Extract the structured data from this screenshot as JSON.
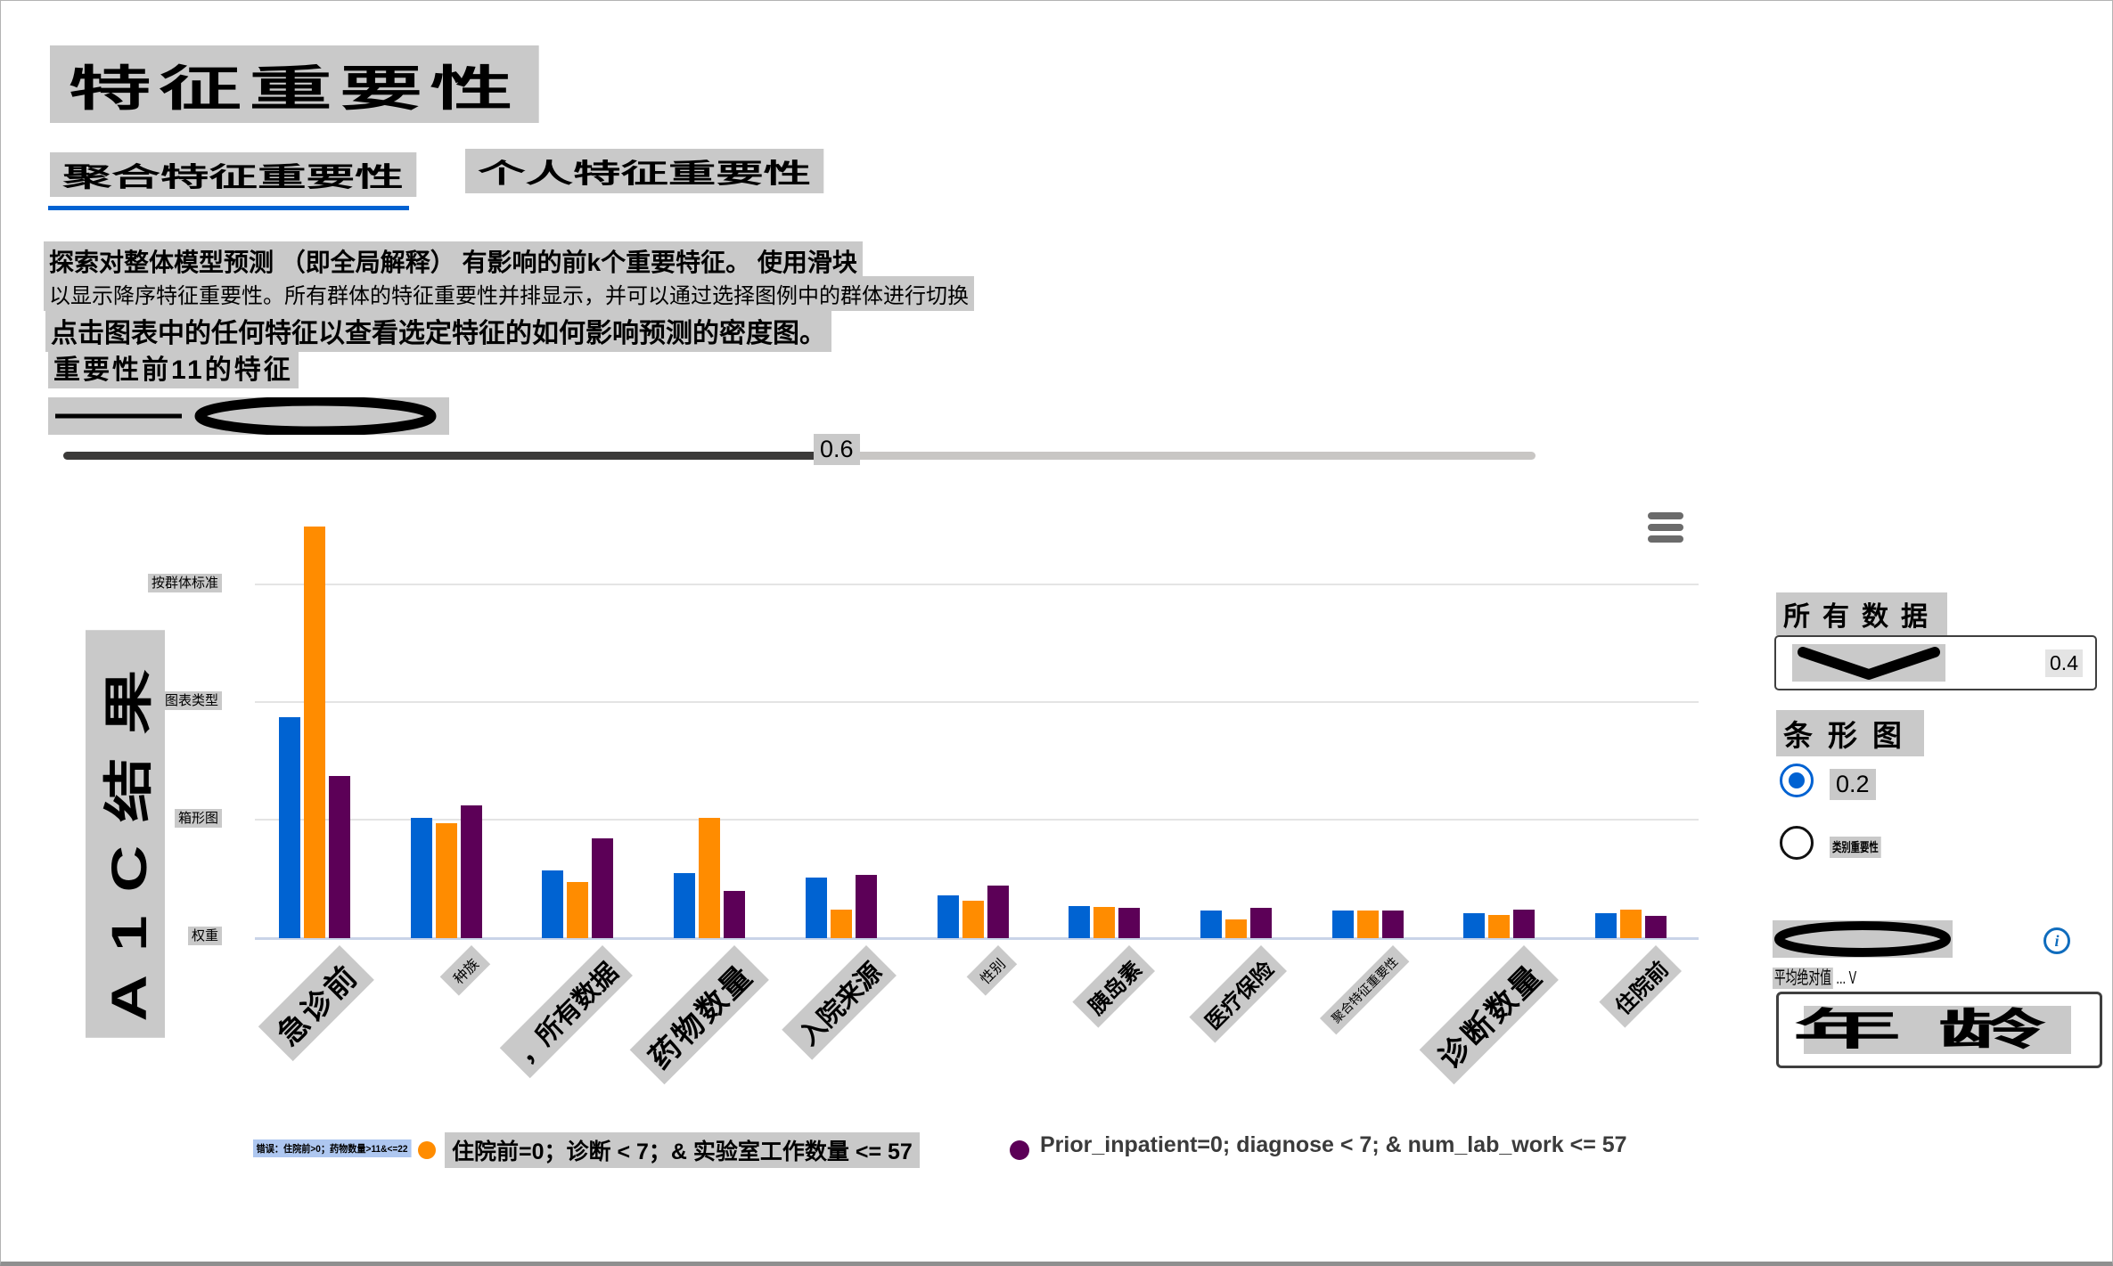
{
  "page_title": "特征重要性",
  "tabs": {
    "aggregate": "聚合特征重要性",
    "individual": "个人特征重要性"
  },
  "description": {
    "line1": "探索对整体模型预测 （即全局解释） 有影响的前k个重要特征。 使用滑块",
    "line2": "以显示降序特征重要性。所有群体的特征重要性并排显示，并可以通过选择图例中的群体进行切换",
    "line3": "点击图表中的任何特征以查看选定特征的如何影响预测的密度图。",
    "line4": "重要性前11的特征"
  },
  "slider": {
    "value": "0.6"
  },
  "chart_data": {
    "type": "bar",
    "title": "重要性前11的特征",
    "ylabel": "A1C结果",
    "y_tick_labels": [
      "按群体标准",
      "图表类型",
      "箱形图",
      "权重"
    ],
    "y_tick_values": [
      0.6,
      0.4,
      0.2,
      0
    ],
    "ylim": [
      0,
      0.71
    ],
    "grid": true,
    "legend_position": "bottom",
    "x_categories": [
      "急诊前",
      "种族",
      "，所有数据",
      "药物数量",
      "入院来源",
      "性别",
      "胰岛素",
      "医疗保险",
      "聚合特征重要性",
      "诊断数量",
      "住院前"
    ],
    "label_sizes": [
      "xl",
      "sm",
      "lg",
      "xl",
      "lg",
      "sm",
      "md",
      "md",
      "xs",
      "xl",
      "md"
    ],
    "series": [
      {
        "name": "错误：住院前>0；药物数量>11&<=22",
        "color": "#0063d2",
        "values": [
          0.375,
          0.205,
          0.115,
          0.11,
          0.103,
          0.073,
          0.055,
          0.047,
          0.047,
          0.043,
          0.042
        ]
      },
      {
        "name": "住院前=0；诊断 < 7；& 实验室工作数量 <= 57",
        "color": "#ff8c00",
        "values": [
          0.7,
          0.195,
          0.095,
          0.205,
          0.048,
          0.064,
          0.053,
          0.032,
          0.047,
          0.04,
          0.048
        ]
      },
      {
        "name": "Prior_inpatient=0; diagnose < 7; & num_lab_work <= 57",
        "color": "#5c0057",
        "values": [
          0.275,
          0.225,
          0.17,
          0.08,
          0.107,
          0.089,
          0.051,
          0.051,
          0.047,
          0.048,
          0.038
        ]
      }
    ]
  },
  "legend": {
    "items": [
      {
        "label": "错误：住院前>0；药物数量>11&<=22",
        "color": "#0063d2",
        "selected": true
      },
      {
        "label": "住院前=0；诊断 < 7；& 实验室工作数量 <= 57",
        "color": "#ff8c00",
        "selected": false
      },
      {
        "label": "Prior_inpatient=0; diagnose < 7; & num_lab_work <= 57",
        "color": "#5c0057",
        "selected": false
      }
    ]
  },
  "sidebar": {
    "dataset_heading": "所有数据",
    "dropdown_value": "0.4",
    "chart_type_heading": "条形图",
    "radio_selected_label": "0.2",
    "radio_unselected_label": "类别重要性",
    "metric_label": "平均绝对值",
    "metric_suffix": " ... V",
    "feature_box_text": "年龄"
  },
  "colors": {
    "series_blue": "#0063d2",
    "series_orange": "#ff8c00",
    "series_purple": "#5c0057",
    "accent_blue": "#0062d2",
    "legend_selected_bg": "#aec7f0",
    "highlight_gray": "#c9c9c9",
    "axis_line": "#c9d4e8",
    "gridline": "#e4e4e4"
  }
}
